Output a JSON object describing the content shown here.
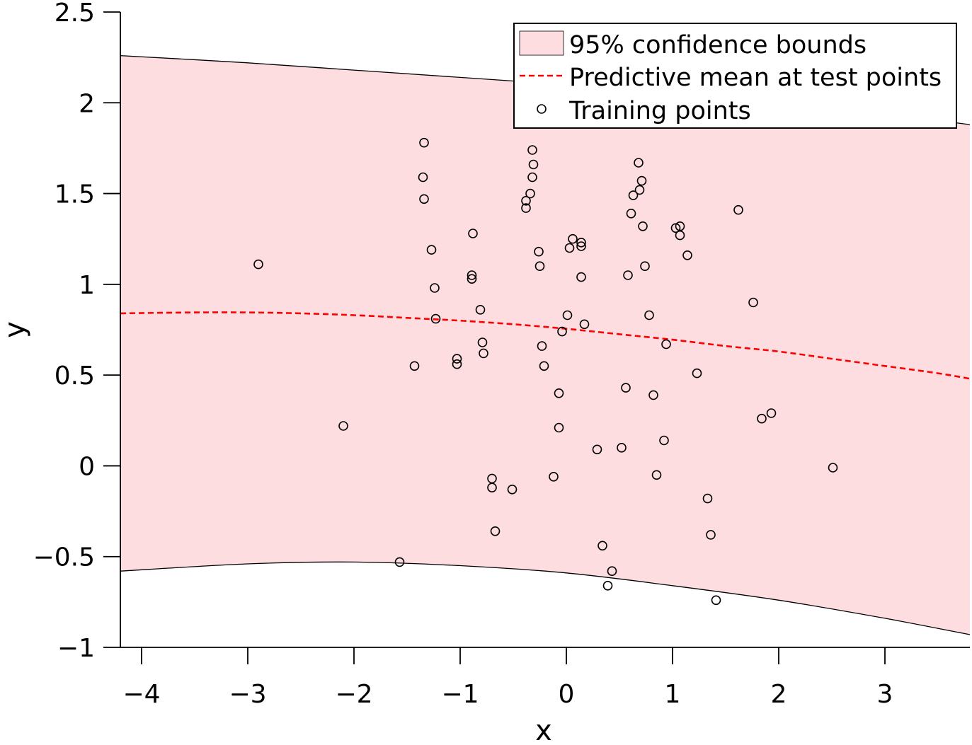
{
  "chart_data": {
    "type": "scatter",
    "xlabel": "x",
    "ylabel": "y",
    "xlim": [
      -4.2,
      3.8
    ],
    "ylim": [
      -1,
      2.5
    ],
    "xticks": [
      -4,
      -3,
      -2,
      -1,
      0,
      1,
      2,
      3
    ],
    "xtick_labels": [
      "−4",
      "−3",
      "−2",
      "−1",
      "0",
      "1",
      "2",
      "3"
    ],
    "yticks": [
      -1,
      -0.5,
      0,
      0.5,
      1,
      1.5,
      2,
      2.5
    ],
    "ytick_labels": [
      "−1",
      "−0.5",
      "0",
      "0.5",
      "1",
      "1.5",
      "2",
      "2.5"
    ],
    "legend_position": "top-right",
    "legend": [
      {
        "label": "95% confidence bounds",
        "kind": "band",
        "color": "#fddde0"
      },
      {
        "label": "Predictive mean at test points",
        "kind": "dashed-line",
        "color": "#ff0000"
      },
      {
        "label": "Training points",
        "kind": "marker",
        "color": "#000000"
      }
    ],
    "series": [
      {
        "kind": "band",
        "color": "#fddde0",
        "x": [
          -4.2,
          -3.0,
          -2.0,
          -1.0,
          0.0,
          1.0,
          2.0,
          3.0,
          3.8
        ],
        "upper": [
          2.26,
          2.22,
          2.18,
          2.14,
          2.1,
          2.06,
          2.01,
          1.94,
          1.88
        ],
        "lower": [
          -0.58,
          -0.54,
          -0.53,
          -0.55,
          -0.59,
          -0.66,
          -0.74,
          -0.84,
          -0.93
        ]
      },
      {
        "kind": "line",
        "style": "dashed",
        "color": "#ff0000",
        "x": [
          -4.2,
          -3.5,
          -3.0,
          -2.5,
          -2.0,
          -1.5,
          -1.0,
          -0.5,
          0.0,
          0.5,
          1.0,
          1.5,
          2.0,
          2.5,
          3.0,
          3.5,
          3.8
        ],
        "y": [
          0.84,
          0.845,
          0.845,
          0.84,
          0.83,
          0.815,
          0.8,
          0.78,
          0.755,
          0.725,
          0.695,
          0.66,
          0.63,
          0.59,
          0.55,
          0.51,
          0.48
        ]
      },
      {
        "kind": "scatter",
        "color": "#000000",
        "points": [
          [
            -2.9,
            1.11
          ],
          [
            -2.1,
            0.22
          ],
          [
            -1.57,
            -0.53
          ],
          [
            -1.43,
            0.55
          ],
          [
            -1.34,
            1.78
          ],
          [
            -1.35,
            1.59
          ],
          [
            -1.34,
            1.47
          ],
          [
            -1.27,
            1.19
          ],
          [
            -1.24,
            0.98
          ],
          [
            -1.23,
            0.81
          ],
          [
            -1.03,
            0.59
          ],
          [
            -1.03,
            0.56
          ],
          [
            -0.88,
            1.28
          ],
          [
            -0.89,
            1.05
          ],
          [
            -0.89,
            1.03
          ],
          [
            -0.81,
            0.86
          ],
          [
            -0.79,
            0.68
          ],
          [
            -0.78,
            0.62
          ],
          [
            -0.7,
            -0.07
          ],
          [
            -0.7,
            -0.12
          ],
          [
            -0.67,
            -0.36
          ],
          [
            -0.51,
            -0.13
          ],
          [
            -0.32,
            1.74
          ],
          [
            -0.31,
            1.66
          ],
          [
            -0.32,
            1.59
          ],
          [
            -0.34,
            1.5
          ],
          [
            -0.38,
            1.46
          ],
          [
            -0.38,
            1.42
          ],
          [
            -0.26,
            1.18
          ],
          [
            -0.25,
            1.1
          ],
          [
            -0.23,
            0.66
          ],
          [
            -0.21,
            0.55
          ],
          [
            -0.12,
            -0.06
          ],
          [
            -0.07,
            0.4
          ],
          [
            -0.07,
            0.21
          ],
          [
            -0.04,
            0.74
          ],
          [
            0.01,
            0.83
          ],
          [
            0.03,
            1.2
          ],
          [
            0.06,
            1.25
          ],
          [
            0.14,
            1.23
          ],
          [
            0.14,
            1.21
          ],
          [
            0.14,
            1.04
          ],
          [
            0.17,
            0.78
          ],
          [
            0.29,
            0.09
          ],
          [
            0.34,
            -0.44
          ],
          [
            0.39,
            -0.66
          ],
          [
            0.43,
            -0.58
          ],
          [
            0.52,
            0.1
          ],
          [
            0.56,
            0.43
          ],
          [
            0.58,
            1.05
          ],
          [
            0.61,
            1.39
          ],
          [
            0.63,
            1.49
          ],
          [
            0.68,
            1.67
          ],
          [
            0.69,
            1.52
          ],
          [
            0.71,
            1.57
          ],
          [
            0.72,
            1.32
          ],
          [
            0.74,
            1.1
          ],
          [
            0.78,
            0.83
          ],
          [
            0.82,
            0.39
          ],
          [
            0.85,
            -0.05
          ],
          [
            0.92,
            0.14
          ],
          [
            0.94,
            0.67
          ],
          [
            1.03,
            1.31
          ],
          [
            1.07,
            1.32
          ],
          [
            1.07,
            1.27
          ],
          [
            1.14,
            1.16
          ],
          [
            1.23,
            0.51
          ],
          [
            1.33,
            -0.18
          ],
          [
            1.36,
            -0.38
          ],
          [
            1.41,
            -0.74
          ],
          [
            1.62,
            1.41
          ],
          [
            1.76,
            0.9
          ],
          [
            1.84,
            0.26
          ],
          [
            1.93,
            0.29
          ],
          [
            2.51,
            -0.01
          ]
        ]
      }
    ]
  }
}
